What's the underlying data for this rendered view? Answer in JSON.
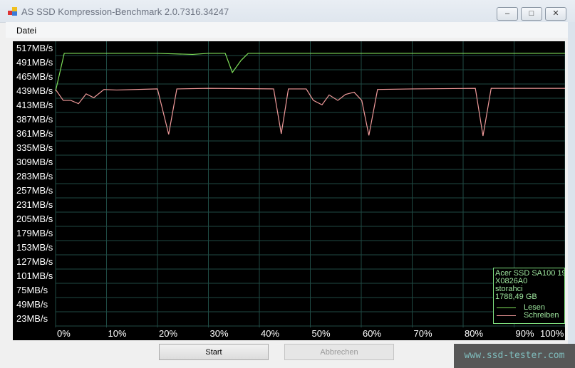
{
  "window": {
    "title": "AS SSD Kompression-Benchmark 2.0.7316.34247",
    "controls": [
      "minimize",
      "maximize",
      "close"
    ]
  },
  "menu": {
    "items": [
      "Datei"
    ]
  },
  "chart_data": {
    "type": "line",
    "yticks": [
      "517MB/s",
      "491MB/s",
      "465MB/s",
      "439MB/s",
      "413MB/s",
      "387MB/s",
      "361MB/s",
      "335MB/s",
      "309MB/s",
      "283MB/s",
      "257MB/s",
      "231MB/s",
      "205MB/s",
      "179MB/s",
      "153MB/s",
      "127MB/s",
      "101MB/s",
      "75MB/s",
      "49MB/s",
      "23MB/s"
    ],
    "xticks": [
      "0%",
      "10%",
      "20%",
      "30%",
      "40%",
      "50%",
      "60%",
      "70%",
      "80%",
      "90%",
      "100%"
    ],
    "ylim": [
      10,
      530
    ],
    "xlim": [
      0,
      100
    ],
    "grid": true,
    "legend_placement": "bottom-right",
    "legend_info": [
      "Acer SSD SA100 19",
      "X0826A0",
      "storahci",
      "1788,49 GB"
    ],
    "series": [
      {
        "name": "Lesen",
        "color": "#7fe05a",
        "x": [
          0,
          1.7,
          10,
          20,
          26.9,
          30,
          33.3,
          34.7,
          36.4,
          37.8,
          50,
          60,
          70,
          80,
          90,
          100
        ],
        "y": [
          439,
          508,
          508,
          508,
          506,
          508,
          508,
          473,
          495,
          508,
          508,
          508,
          508,
          508,
          508,
          508
        ]
      },
      {
        "name": "Schreiben",
        "color": "#f09a9a",
        "x": [
          0,
          1.5,
          3,
          4.5,
          6,
          7.5,
          9.5,
          12,
          20,
          22.2,
          23.8,
          30,
          42.8,
          44.3,
          45.7,
          49.2,
          50.6,
          52.3,
          53.7,
          55.4,
          56.9,
          58.6,
          60.1,
          61.5,
          63.2,
          70,
          82.4,
          83.9,
          85.5,
          100
        ],
        "y": [
          442,
          422,
          422,
          416,
          434,
          427,
          442,
          441,
          443,
          360,
          443,
          444,
          443,
          361,
          443,
          443,
          422,
          414,
          432,
          422,
          433,
          437,
          422,
          358,
          442,
          443,
          444,
          357,
          444,
          444
        ]
      }
    ]
  },
  "buttons": {
    "start": "Start",
    "cancel": "Abbrechen"
  },
  "watermark": "www.ssd-tester.com"
}
